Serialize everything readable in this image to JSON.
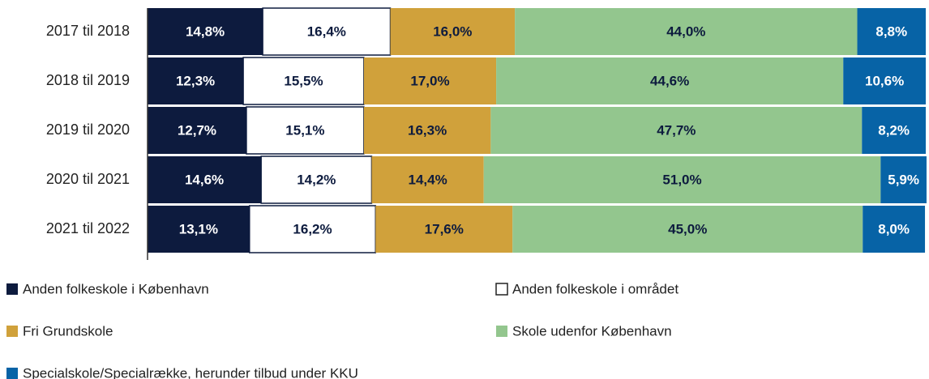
{
  "chart_data": {
    "type": "stacked-barh",
    "categories": [
      "2017 til 2018",
      "2018 til 2019",
      "2019 til 2020",
      "2020 til 2021",
      "2021 til 2022"
    ],
    "xlim": [
      0,
      100
    ],
    "legend": "bottom",
    "series": [
      {
        "name": "Anden folkeskole i København",
        "color": "#0d1b3e",
        "text_color": "#ffffff",
        "values": [
          14.8,
          12.3,
          12.7,
          14.6,
          13.1
        ],
        "value_labels": [
          "14,8%",
          "12,3%",
          "12,7%",
          "14,6%",
          "13,1%"
        ]
      },
      {
        "name": "Anden folkeskole i området",
        "color": "#ffffff",
        "text_color": "#0d1b3e",
        "values": [
          16.4,
          15.5,
          15.1,
          14.2,
          16.2
        ],
        "value_labels": [
          "16,4%",
          "15,5%",
          "15,1%",
          "14,2%",
          "16,2%"
        ]
      },
      {
        "name": "Fri Grundskole",
        "color": "#d0a13b",
        "text_color": "#0d1b3e",
        "values": [
          16.0,
          17.0,
          16.3,
          14.4,
          17.6
        ],
        "value_labels": [
          "16,0%",
          "17,0%",
          "16,3%",
          "14,4%",
          "17,6%"
        ]
      },
      {
        "name": "Skole udenfor København",
        "color": "#93c68e",
        "text_color": "#0d1b3e",
        "values": [
          44.0,
          44.6,
          47.7,
          51.0,
          45.0
        ],
        "value_labels": [
          "44,0%",
          "44,6%",
          "47,7%",
          "51,0%",
          "45,0%"
        ]
      },
      {
        "name": "Specialskole/Specialrække, herunder tilbud under KKU",
        "color": "#0763a6",
        "text_color": "#ffffff",
        "values": [
          8.8,
          10.6,
          8.2,
          5.9,
          8.0
        ],
        "value_labels": [
          "8,8%",
          "10,6%",
          "8,2%",
          "5,9%",
          "8,0%"
        ]
      }
    ]
  }
}
